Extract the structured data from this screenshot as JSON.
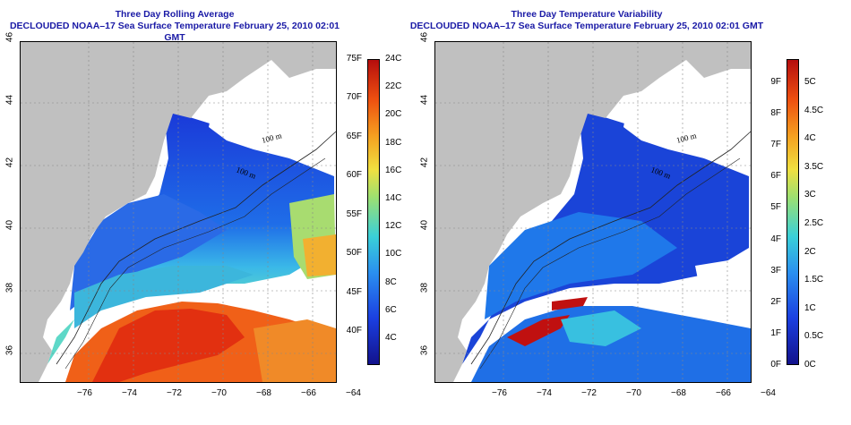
{
  "map1": {
    "title_line1": "Three Day Rolling Average",
    "title_line2": "DECLOUDED NOAA–17 Sea Surface Temperature February 25, 2010 02:01 GMT",
    "contour_label": "100 m",
    "colorbar_f": [
      "75F",
      "70F",
      "65F",
      "60F",
      "55F",
      "50F",
      "45F",
      "40F"
    ],
    "colorbar_c": [
      "24C",
      "22C",
      "20C",
      "18C",
      "16C",
      "14C",
      "12C",
      "10C",
      "8C",
      "6C",
      "4C"
    ]
  },
  "map2": {
    "title_line1": "Three Day Temperature Variability",
    "title_line2": "DECLOUDED NOAA–17 Sea Surface Temperature February 25, 2010 02:01 GMT",
    "contour_label": "100 m",
    "colorbar_f": [
      "9F",
      "8F",
      "7F",
      "6F",
      "5F",
      "4F",
      "3F",
      "2F",
      "1F",
      "0F"
    ],
    "colorbar_c": [
      "5C",
      "4.5C",
      "4C",
      "3.5C",
      "3C",
      "2.5C",
      "2C",
      "1.5C",
      "1C",
      "0.5C",
      "0C"
    ]
  },
  "axes": {
    "x_ticks": [
      "−76",
      "−74",
      "−72",
      "−70",
      "−68",
      "−66",
      "−64"
    ],
    "y_ticks": [
      "36",
      "38",
      "40",
      "42",
      "44",
      "46"
    ]
  },
  "colors": {
    "land": "#c0c0c0",
    "title": "#1a1aa6"
  }
}
